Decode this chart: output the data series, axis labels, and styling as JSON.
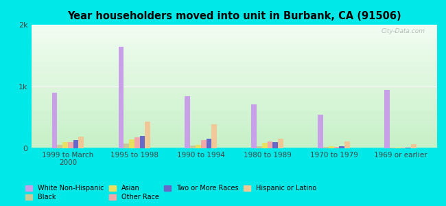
{
  "title": "Year householders moved into unit in Burbank, CA (91506)",
  "categories": [
    "1999 to March\n2000",
    "1995 to 1998",
    "1990 to 1994",
    "1980 to 1989",
    "1970 to 1979",
    "1969 or earlier"
  ],
  "series_order": [
    "White Non-Hispanic",
    "Black",
    "Asian",
    "Other Race",
    "Two or More Races",
    "Hispanic or Latino"
  ],
  "series": {
    "White Non-Hispanic": [
      900,
      1650,
      850,
      710,
      540,
      940
    ],
    "Black": [
      55,
      80,
      40,
      35,
      25,
      10
    ],
    "Asian": [
      100,
      150,
      55,
      85,
      28,
      8
    ],
    "Other Race": [
      105,
      175,
      130,
      110,
      18,
      15
    ],
    "Two or More Races": [
      130,
      195,
      155,
      105,
      30,
      10
    ],
    "Hispanic or Latino": [
      185,
      430,
      390,
      160,
      115,
      70
    ]
  },
  "colors": {
    "White Non-Hispanic": "#c8a0e8",
    "Black": "#c8c898",
    "Asian": "#e8e060",
    "Other Race": "#f0a8a8",
    "Two or More Races": "#6868c8",
    "Hispanic or Latino": "#f0c898"
  },
  "ylim": [
    0,
    2000
  ],
  "yticks": [
    0,
    1000,
    2000
  ],
  "ytick_labels": [
    "0",
    "1k",
    "2k"
  ],
  "background_color": "#00e8e8",
  "plot_bg_color": "#dff0df",
  "watermark": "City-Data.com",
  "bar_width": 0.08,
  "legend_order_row1": [
    "White Non-Hispanic",
    "Black",
    "Asian",
    "Other Race"
  ],
  "legend_order_row2": [
    "Two or More Races",
    "Hispanic or Latino"
  ]
}
